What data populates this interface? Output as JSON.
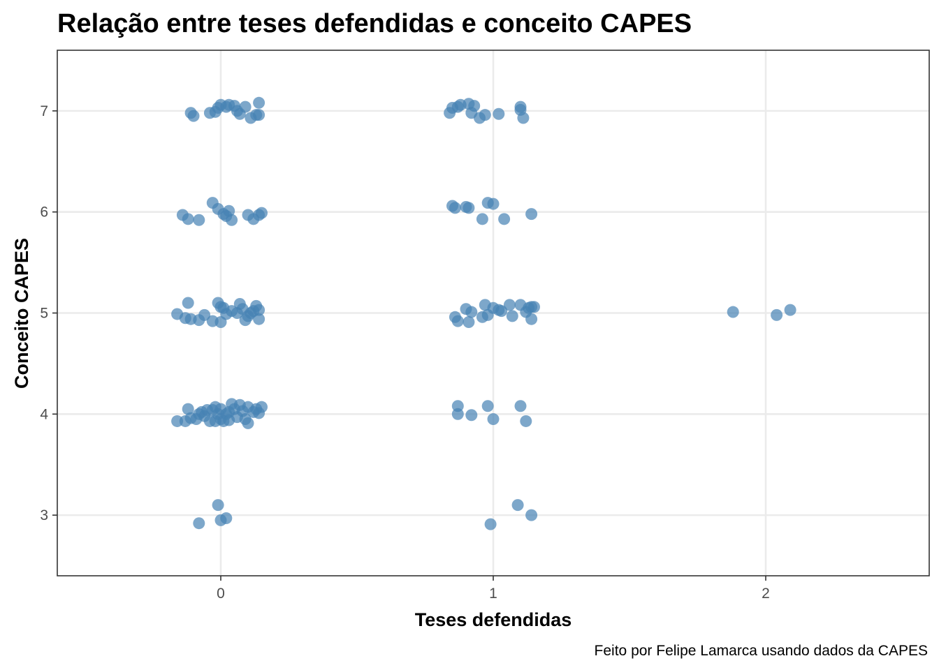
{
  "chart_data": {
    "type": "scatter",
    "title": "Relação entre teses defendidas e conceito CAPES",
    "xlabel": "Teses defendidas",
    "ylabel": "Conceito CAPES",
    "caption": "Feito por Felipe Lamarca usando dados da CAPES",
    "xlim": [
      -0.6,
      2.6
    ],
    "ylim": [
      2.4,
      7.6
    ],
    "x_ticks": [
      0,
      1,
      2
    ],
    "x_tick_labels": [
      "0",
      "1",
      "2"
    ],
    "y_ticks": [
      3,
      4,
      5,
      6,
      7
    ],
    "y_tick_labels": [
      "3",
      "4",
      "5",
      "6",
      "7"
    ],
    "grid": true,
    "point_color": "#4682B4",
    "point_opacity": 0.7,
    "points": [
      {
        "x": -0.11,
        "y": 6.98
      },
      {
        "x": -0.1,
        "y": 6.95
      },
      {
        "x": -0.04,
        "y": 6.98
      },
      {
        "x": -0.02,
        "y": 6.99
      },
      {
        "x": -0.01,
        "y": 7.03
      },
      {
        "x": 0.0,
        "y": 7.06
      },
      {
        "x": 0.02,
        "y": 7.04
      },
      {
        "x": 0.03,
        "y": 7.06
      },
      {
        "x": 0.05,
        "y": 7.05
      },
      {
        "x": 0.06,
        "y": 7.0
      },
      {
        "x": 0.07,
        "y": 6.97
      },
      {
        "x": 0.09,
        "y": 7.04
      },
      {
        "x": 0.11,
        "y": 6.93
      },
      {
        "x": 0.13,
        "y": 6.96
      },
      {
        "x": 0.14,
        "y": 7.08
      },
      {
        "x": 0.14,
        "y": 6.96
      },
      {
        "x": -0.14,
        "y": 5.97
      },
      {
        "x": -0.12,
        "y": 5.93
      },
      {
        "x": -0.08,
        "y": 5.92
      },
      {
        "x": -0.03,
        "y": 6.09
      },
      {
        "x": -0.01,
        "y": 6.03
      },
      {
        "x": 0.01,
        "y": 5.98
      },
      {
        "x": 0.02,
        "y": 5.96
      },
      {
        "x": 0.03,
        "y": 6.01
      },
      {
        "x": 0.04,
        "y": 5.92
      },
      {
        "x": 0.1,
        "y": 5.97
      },
      {
        "x": 0.12,
        "y": 5.93
      },
      {
        "x": 0.14,
        "y": 5.97
      },
      {
        "x": 0.15,
        "y": 5.99
      },
      {
        "x": -0.16,
        "y": 4.99
      },
      {
        "x": -0.13,
        "y": 4.95
      },
      {
        "x": -0.12,
        "y": 5.1
      },
      {
        "x": -0.11,
        "y": 4.94
      },
      {
        "x": -0.08,
        "y": 4.93
      },
      {
        "x": -0.06,
        "y": 4.98
      },
      {
        "x": -0.03,
        "y": 4.92
      },
      {
        "x": -0.01,
        "y": 5.1
      },
      {
        "x": 0.0,
        "y": 5.06
      },
      {
        "x": 0.0,
        "y": 4.91
      },
      {
        "x": 0.01,
        "y": 5.05
      },
      {
        "x": 0.02,
        "y": 4.99
      },
      {
        "x": 0.04,
        "y": 5.02
      },
      {
        "x": 0.06,
        "y": 5.0
      },
      {
        "x": 0.07,
        "y": 5.09
      },
      {
        "x": 0.08,
        "y": 5.04
      },
      {
        "x": 0.09,
        "y": 4.93
      },
      {
        "x": 0.1,
        "y": 4.97
      },
      {
        "x": 0.11,
        "y": 5.0
      },
      {
        "x": 0.12,
        "y": 5.02
      },
      {
        "x": 0.13,
        "y": 5.07
      },
      {
        "x": 0.14,
        "y": 4.94
      },
      {
        "x": 0.14,
        "y": 5.03
      },
      {
        "x": -0.16,
        "y": 3.93
      },
      {
        "x": -0.13,
        "y": 3.93
      },
      {
        "x": -0.12,
        "y": 4.05
      },
      {
        "x": -0.11,
        "y": 3.96
      },
      {
        "x": -0.09,
        "y": 3.95
      },
      {
        "x": -0.08,
        "y": 4.0
      },
      {
        "x": -0.07,
        "y": 4.02
      },
      {
        "x": -0.06,
        "y": 3.98
      },
      {
        "x": -0.05,
        "y": 4.04
      },
      {
        "x": -0.04,
        "y": 3.93
      },
      {
        "x": -0.03,
        "y": 4.04
      },
      {
        "x": -0.02,
        "y": 4.07
      },
      {
        "x": -0.02,
        "y": 3.93
      },
      {
        "x": -0.01,
        "y": 4.0
      },
      {
        "x": 0.0,
        "y": 4.05
      },
      {
        "x": 0.0,
        "y": 3.95
      },
      {
        "x": 0.01,
        "y": 3.93
      },
      {
        "x": 0.02,
        "y": 4.0
      },
      {
        "x": 0.03,
        "y": 4.02
      },
      {
        "x": 0.03,
        "y": 3.94
      },
      {
        "x": 0.04,
        "y": 4.1
      },
      {
        "x": 0.05,
        "y": 4.05
      },
      {
        "x": 0.06,
        "y": 3.97
      },
      {
        "x": 0.07,
        "y": 4.09
      },
      {
        "x": 0.08,
        "y": 4.03
      },
      {
        "x": 0.09,
        "y": 3.95
      },
      {
        "x": 0.1,
        "y": 3.91
      },
      {
        "x": 0.1,
        "y": 4.07
      },
      {
        "x": 0.12,
        "y": 4.02
      },
      {
        "x": 0.13,
        "y": 4.05
      },
      {
        "x": 0.14,
        "y": 4.01
      },
      {
        "x": 0.15,
        "y": 4.07
      },
      {
        "x": -0.08,
        "y": 2.92
      },
      {
        "x": -0.01,
        "y": 3.1
      },
      {
        "x": 0.0,
        "y": 2.95
      },
      {
        "x": 0.02,
        "y": 2.97
      },
      {
        "x": 0.84,
        "y": 6.98
      },
      {
        "x": 0.85,
        "y": 7.03
      },
      {
        "x": 0.87,
        "y": 7.04
      },
      {
        "x": 0.88,
        "y": 7.06
      },
      {
        "x": 0.91,
        "y": 7.07
      },
      {
        "x": 0.92,
        "y": 6.98
      },
      {
        "x": 0.93,
        "y": 7.05
      },
      {
        "x": 0.95,
        "y": 6.93
      },
      {
        "x": 0.97,
        "y": 6.96
      },
      {
        "x": 1.02,
        "y": 6.97
      },
      {
        "x": 1.1,
        "y": 7.04
      },
      {
        "x": 1.1,
        "y": 7.01
      },
      {
        "x": 1.11,
        "y": 6.93
      },
      {
        "x": 0.85,
        "y": 6.06
      },
      {
        "x": 0.86,
        "y": 6.04
      },
      {
        "x": 0.9,
        "y": 6.05
      },
      {
        "x": 0.91,
        "y": 6.04
      },
      {
        "x": 0.96,
        "y": 5.93
      },
      {
        "x": 0.98,
        "y": 6.09
      },
      {
        "x": 1.0,
        "y": 6.08
      },
      {
        "x": 1.04,
        "y": 5.93
      },
      {
        "x": 1.14,
        "y": 5.98
      },
      {
        "x": 0.86,
        "y": 4.96
      },
      {
        "x": 0.87,
        "y": 4.92
      },
      {
        "x": 0.9,
        "y": 5.04
      },
      {
        "x": 0.91,
        "y": 4.91
      },
      {
        "x": 0.92,
        "y": 5.01
      },
      {
        "x": 0.96,
        "y": 4.96
      },
      {
        "x": 0.97,
        "y": 5.08
      },
      {
        "x": 0.98,
        "y": 4.98
      },
      {
        "x": 1.0,
        "y": 5.05
      },
      {
        "x": 1.02,
        "y": 5.03
      },
      {
        "x": 1.03,
        "y": 5.02
      },
      {
        "x": 1.06,
        "y": 5.08
      },
      {
        "x": 1.07,
        "y": 4.97
      },
      {
        "x": 1.1,
        "y": 5.08
      },
      {
        "x": 1.12,
        "y": 5.01
      },
      {
        "x": 1.13,
        "y": 5.05
      },
      {
        "x": 1.14,
        "y": 4.94
      },
      {
        "x": 1.14,
        "y": 5.06
      },
      {
        "x": 1.15,
        "y": 5.06
      },
      {
        "x": 0.87,
        "y": 4.08
      },
      {
        "x": 0.87,
        "y": 4.0
      },
      {
        "x": 0.92,
        "y": 3.99
      },
      {
        "x": 0.98,
        "y": 4.08
      },
      {
        "x": 1.0,
        "y": 3.95
      },
      {
        "x": 1.1,
        "y": 4.08
      },
      {
        "x": 1.12,
        "y": 3.93
      },
      {
        "x": 0.99,
        "y": 2.91
      },
      {
        "x": 1.09,
        "y": 3.1
      },
      {
        "x": 1.14,
        "y": 3.0
      },
      {
        "x": 1.88,
        "y": 5.01
      },
      {
        "x": 2.04,
        "y": 4.98
      },
      {
        "x": 2.09,
        "y": 5.03
      }
    ]
  }
}
